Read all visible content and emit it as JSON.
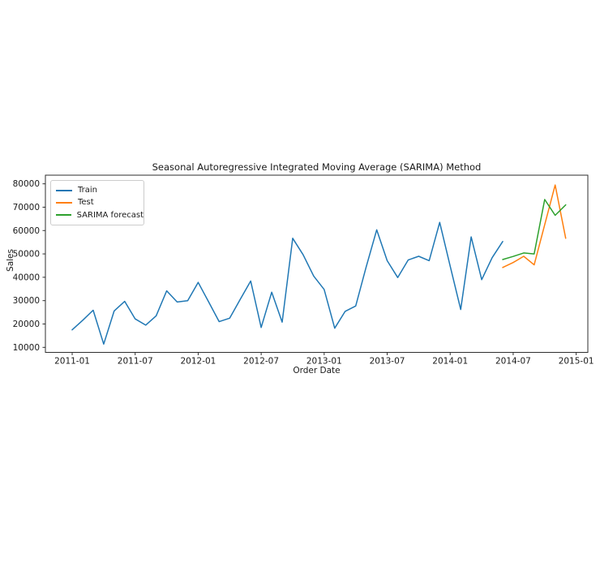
{
  "figure": {
    "title": "Seasonal Autoregressive Integrated Moving Average (SARIMA) Method",
    "xlabel": "Order Date",
    "ylabel": "Sales"
  },
  "chart_data": {
    "type": "line",
    "title": "Seasonal Autoregressive Integrated Moving Average (SARIMA) Method",
    "xlabel": "Order Date",
    "ylabel": "Sales",
    "grid": false,
    "x_unit": "month",
    "x_tick_labels": [
      "2011-01",
      "2011-07",
      "2012-01",
      "2012-07",
      "2013-01",
      "2013-07",
      "2014-01",
      "2014-07",
      "2015-01"
    ],
    "y_ticks": [
      10000,
      20000,
      30000,
      40000,
      50000,
      60000,
      70000,
      80000
    ],
    "ylim": [
      7850,
      83700
    ],
    "xlim_month_index": [
      -2.55,
      49.11
    ],
    "legend": {
      "position": "upper-left",
      "entries": [
        "Train",
        "Test",
        "SARIMA forecast"
      ]
    },
    "series": [
      {
        "name": "Train",
        "color": "#1f77b4",
        "start": "2011-01",
        "frequency": "monthly",
        "values": [
          17500,
          21600,
          25900,
          11400,
          25600,
          29700,
          22200,
          19500,
          23500,
          34200,
          29400,
          30000,
          37800,
          29400,
          21000,
          22500,
          30500,
          38400,
          18500,
          33600,
          20800,
          56700,
          49600,
          40500,
          34800,
          18200,
          25400,
          27700,
          44400,
          60300,
          47100,
          39900,
          47400,
          49000,
          47100,
          63500,
          44800,
          26200,
          57300,
          39000,
          48400,
          55300
        ]
      },
      {
        "name": "Test",
        "color": "#ff7f0e",
        "start": "2014-06",
        "frequency": "monthly",
        "values": [
          44200,
          46300,
          49000,
          45300,
          62500,
          79500,
          56700
        ]
      },
      {
        "name": "SARIMA forecast",
        "color": "#2ca02c",
        "start": "2014-06",
        "frequency": "monthly",
        "values": [
          47600,
          48900,
          50400,
          50000,
          73300,
          66500,
          71000
        ]
      }
    ]
  }
}
